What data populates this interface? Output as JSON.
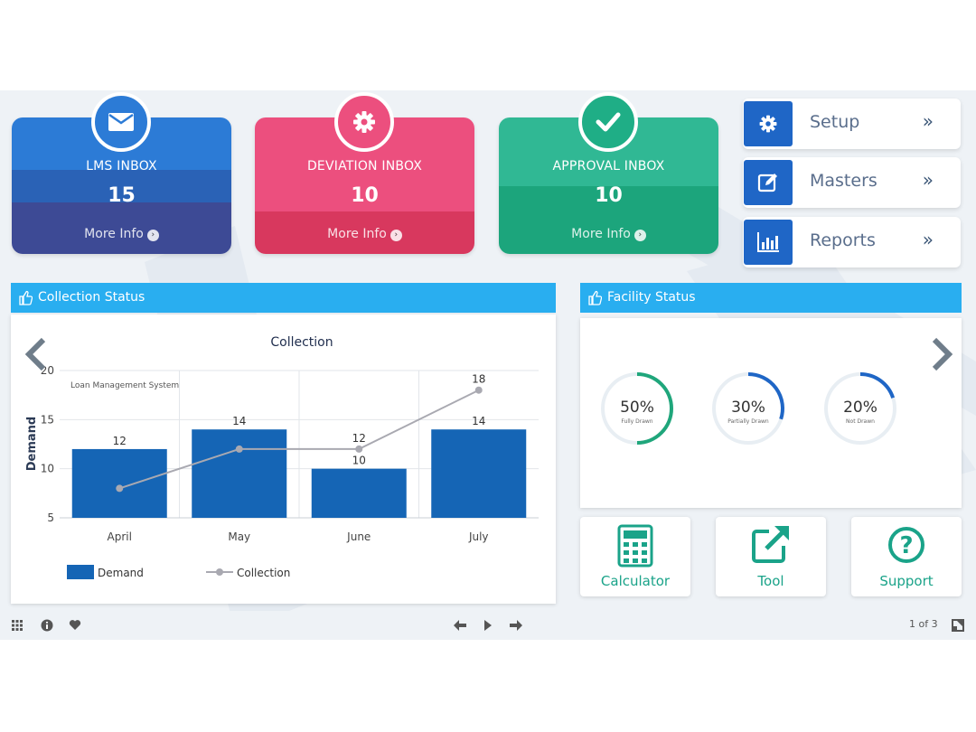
{
  "inboxes": [
    {
      "title": "LMS INBOX",
      "count": "15",
      "more": "More Info",
      "icon": "envelope-icon",
      "color": "#2a6fc9"
    },
    {
      "title": "DEVIATION INBOX",
      "count": "10",
      "more": "More Info",
      "icon": "gear-icon",
      "color": "#e94b7a"
    },
    {
      "title": "APPROVAL INBOX",
      "count": "10",
      "more": "More Info",
      "icon": "check-icon",
      "color": "#1fae86"
    }
  ],
  "menu": [
    {
      "label": "Setup",
      "icon": "gear-icon",
      "chevron": "»"
    },
    {
      "label": "Masters",
      "icon": "edit-icon",
      "chevron": "»"
    },
    {
      "label": "Reports",
      "icon": "bar-chart-icon",
      "chevron": "»"
    }
  ],
  "collection_panel": {
    "title": "Collection Status"
  },
  "facility_panel": {
    "title": "Facility Status"
  },
  "chart_data": {
    "type": "bar",
    "title": "Collection",
    "annotation": "Loan Management System",
    "ylabel": "Demand",
    "xlabel": "",
    "categories": [
      "April",
      "May",
      "June",
      "July"
    ],
    "ylim": [
      5,
      20
    ],
    "yticks": [
      5,
      10,
      15,
      20
    ],
    "series": [
      {
        "name": "Demand",
        "kind": "bar",
        "values": [
          12,
          14,
          10,
          14
        ],
        "color": "#1565b5"
      },
      {
        "name": "Collection",
        "kind": "line",
        "values": [
          8,
          12,
          12,
          18
        ],
        "color": "#a9a9b1"
      }
    ],
    "data_labels": {
      "bars": [
        "12",
        "14",
        "10",
        "14"
      ],
      "line": [
        "",
        "",
        "12",
        "18"
      ]
    },
    "grid": true,
    "legend": "bottom"
  },
  "facility_gauges": [
    {
      "value": 50,
      "label": "50%",
      "sublabel": "Fully Drawn",
      "color": "#1fa67b"
    },
    {
      "value": 30,
      "label": "30%",
      "sublabel": "Partially Drawn",
      "color": "#1f66c6"
    },
    {
      "value": 20,
      "label": "20%",
      "sublabel": "Not Drawn",
      "color": "#1f66c6"
    }
  ],
  "tiles": [
    {
      "label": "Calculator",
      "icon": "calculator-icon"
    },
    {
      "label": "Tool",
      "icon": "external-link-icon"
    },
    {
      "label": "Support",
      "icon": "question-icon"
    }
  ],
  "bottom_bar": {
    "page_indicator": "1 of 3"
  },
  "colors": {
    "accent": "#29aef0",
    "header_blue": "#1f66c6"
  }
}
